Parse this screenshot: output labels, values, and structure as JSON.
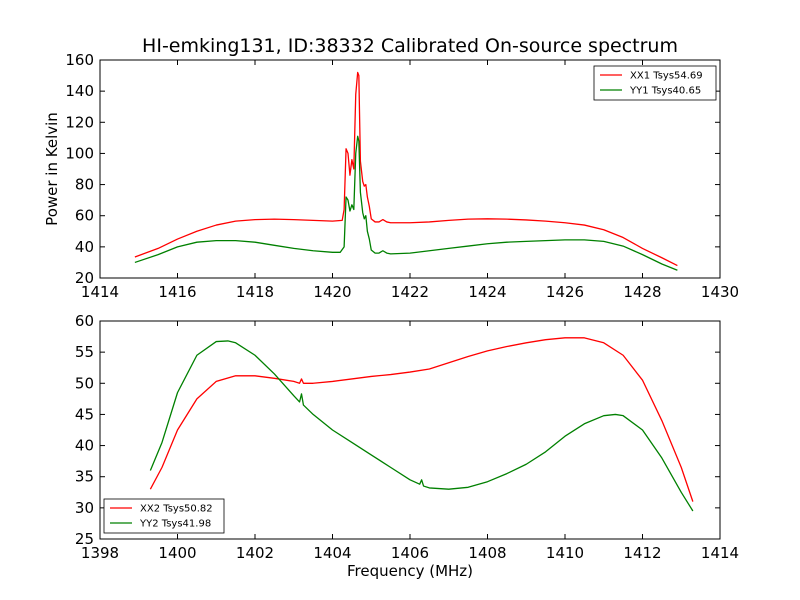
{
  "title": "HI-emking131, ID:38332 Calibrated On-source spectrum",
  "chart_data": [
    {
      "type": "line",
      "ylabel": "Power in Kelvin",
      "xlabel": "",
      "xlim": [
        1414,
        1430
      ],
      "ylim": [
        20,
        160
      ],
      "xticks": [
        1414,
        1416,
        1418,
        1420,
        1422,
        1424,
        1426,
        1428,
        1430
      ],
      "yticks": [
        20,
        40,
        60,
        80,
        100,
        120,
        140,
        160
      ],
      "legend_position": "top-right",
      "series": [
        {
          "name": "XX1 Tsys54.69",
          "color": "#ff0000",
          "points": [
            [
              1414.9,
              33.5
            ],
            [
              1415.5,
              39
            ],
            [
              1416.0,
              45
            ],
            [
              1416.5,
              50
            ],
            [
              1417.0,
              54
            ],
            [
              1417.5,
              56.5
            ],
            [
              1418.0,
              57.5
            ],
            [
              1418.5,
              57.8
            ],
            [
              1419.0,
              57.5
            ],
            [
              1419.5,
              57
            ],
            [
              1420.0,
              56.5
            ],
            [
              1420.25,
              57
            ],
            [
              1420.3,
              64
            ],
            [
              1420.35,
              103
            ],
            [
              1420.4,
              100
            ],
            [
              1420.45,
              86
            ],
            [
              1420.5,
              96
            ],
            [
              1420.55,
              90
            ],
            [
              1420.6,
              138
            ],
            [
              1420.65,
              152
            ],
            [
              1420.68,
              150
            ],
            [
              1420.72,
              95
            ],
            [
              1420.78,
              82
            ],
            [
              1420.82,
              79
            ],
            [
              1420.86,
              80
            ],
            [
              1420.9,
              72
            ],
            [
              1420.95,
              66
            ],
            [
              1421.0,
              58
            ],
            [
              1421.1,
              56
            ],
            [
              1421.2,
              56
            ],
            [
              1421.3,
              57.5
            ],
            [
              1421.4,
              56
            ],
            [
              1421.5,
              55.5
            ],
            [
              1422.0,
              55.5
            ],
            [
              1422.5,
              56
            ],
            [
              1423.0,
              57
            ],
            [
              1423.5,
              57.8
            ],
            [
              1424.0,
              58
            ],
            [
              1424.5,
              57.8
            ],
            [
              1425.0,
              57.3
            ],
            [
              1425.5,
              56.5
            ],
            [
              1426.0,
              55.5
            ],
            [
              1426.5,
              54
            ],
            [
              1427.0,
              51
            ],
            [
              1427.5,
              46
            ],
            [
              1428.0,
              39
            ],
            [
              1428.5,
              33
            ],
            [
              1428.9,
              28
            ]
          ]
        },
        {
          "name": "YY1 Tsys40.65",
          "color": "#008000",
          "points": [
            [
              1414.9,
              30
            ],
            [
              1415.5,
              35
            ],
            [
              1416.0,
              40
            ],
            [
              1416.5,
              43
            ],
            [
              1417.0,
              44
            ],
            [
              1417.5,
              44
            ],
            [
              1418.0,
              43
            ],
            [
              1418.5,
              41
            ],
            [
              1419.0,
              39
            ],
            [
              1419.5,
              37.5
            ],
            [
              1420.0,
              36.5
            ],
            [
              1420.2,
              36.5
            ],
            [
              1420.3,
              40
            ],
            [
              1420.35,
              72
            ],
            [
              1420.4,
              70
            ],
            [
              1420.45,
              63
            ],
            [
              1420.5,
              67
            ],
            [
              1420.55,
              64
            ],
            [
              1420.6,
              100
            ],
            [
              1420.65,
              111
            ],
            [
              1420.68,
              108
            ],
            [
              1420.72,
              75
            ],
            [
              1420.78,
              62
            ],
            [
              1420.82,
              58
            ],
            [
              1420.86,
              60
            ],
            [
              1420.9,
              50
            ],
            [
              1420.95,
              45
            ],
            [
              1421.0,
              38
            ],
            [
              1421.1,
              36
            ],
            [
              1421.2,
              36
            ],
            [
              1421.3,
              37.5
            ],
            [
              1421.4,
              36
            ],
            [
              1421.5,
              35.5
            ],
            [
              1422.0,
              36
            ],
            [
              1422.5,
              37.5
            ],
            [
              1423.0,
              39
            ],
            [
              1423.5,
              40.5
            ],
            [
              1424.0,
              42
            ],
            [
              1424.5,
              43
            ],
            [
              1425.0,
              43.5
            ],
            [
              1425.5,
              44
            ],
            [
              1426.0,
              44.5
            ],
            [
              1426.5,
              44.5
            ],
            [
              1427.0,
              43.5
            ],
            [
              1427.5,
              40.5
            ],
            [
              1428.0,
              35
            ],
            [
              1428.5,
              29
            ],
            [
              1428.9,
              25
            ]
          ]
        }
      ]
    },
    {
      "type": "line",
      "xlabel": "Frequency (MHz)",
      "ylabel": "",
      "xlim": [
        1398,
        1414
      ],
      "ylim": [
        25,
        60
      ],
      "xticks": [
        1398,
        1400,
        1402,
        1404,
        1406,
        1408,
        1410,
        1412,
        1414
      ],
      "yticks": [
        25,
        30,
        35,
        40,
        45,
        50,
        55,
        60
      ],
      "legend_position": "bottom-left",
      "series": [
        {
          "name": "XX2 Tsys50.82",
          "color": "#ff0000",
          "points": [
            [
              1399.3,
              33
            ],
            [
              1399.6,
              36.5
            ],
            [
              1400.0,
              42.5
            ],
            [
              1400.5,
              47.5
            ],
            [
              1401.0,
              50.3
            ],
            [
              1401.5,
              51.2
            ],
            [
              1402.0,
              51.2
            ],
            [
              1402.5,
              50.8
            ],
            [
              1403.0,
              50.3
            ],
            [
              1403.15,
              50
            ],
            [
              1403.2,
              50.7
            ],
            [
              1403.25,
              50
            ],
            [
              1403.5,
              50
            ],
            [
              1404.0,
              50.3
            ],
            [
              1404.5,
              50.7
            ],
            [
              1405.0,
              51.1
            ],
            [
              1405.5,
              51.4
            ],
            [
              1406.0,
              51.8
            ],
            [
              1406.5,
              52.3
            ],
            [
              1407.0,
              53.3
            ],
            [
              1407.5,
              54.3
            ],
            [
              1408.0,
              55.2
            ],
            [
              1408.5,
              55.9
            ],
            [
              1409.0,
              56.5
            ],
            [
              1409.5,
              57
            ],
            [
              1410.0,
              57.3
            ],
            [
              1410.5,
              57.3
            ],
            [
              1411.0,
              56.5
            ],
            [
              1411.5,
              54.5
            ],
            [
              1412.0,
              50.5
            ],
            [
              1412.5,
              44
            ],
            [
              1413.0,
              36.5
            ],
            [
              1413.3,
              31
            ]
          ]
        },
        {
          "name": "YY2 Tsys41.98",
          "color": "#008000",
          "points": [
            [
              1399.3,
              36
            ],
            [
              1399.6,
              40.5
            ],
            [
              1400.0,
              48.5
            ],
            [
              1400.5,
              54.5
            ],
            [
              1401.0,
              56.7
            ],
            [
              1401.3,
              56.8
            ],
            [
              1401.5,
              56.5
            ],
            [
              1402.0,
              54.5
            ],
            [
              1402.5,
              51.5
            ],
            [
              1403.0,
              48
            ],
            [
              1403.15,
              47
            ],
            [
              1403.2,
              48.3
            ],
            [
              1403.25,
              46.5
            ],
            [
              1403.5,
              45
            ],
            [
              1404.0,
              42.5
            ],
            [
              1404.5,
              40.5
            ],
            [
              1405.0,
              38.5
            ],
            [
              1405.5,
              36.5
            ],
            [
              1406.0,
              34.5
            ],
            [
              1406.25,
              33.8
            ],
            [
              1406.3,
              34.5
            ],
            [
              1406.35,
              33.5
            ],
            [
              1406.5,
              33.2
            ],
            [
              1407.0,
              33
            ],
            [
              1407.5,
              33.3
            ],
            [
              1408.0,
              34.2
            ],
            [
              1408.5,
              35.5
            ],
            [
              1409.0,
              37
            ],
            [
              1409.5,
              39
            ],
            [
              1410.0,
              41.5
            ],
            [
              1410.5,
              43.5
            ],
            [
              1411.0,
              44.8
            ],
            [
              1411.3,
              45
            ],
            [
              1411.5,
              44.8
            ],
            [
              1412.0,
              42.5
            ],
            [
              1412.5,
              38
            ],
            [
              1413.0,
              32.5
            ],
            [
              1413.3,
              29.5
            ]
          ]
        }
      ]
    }
  ]
}
